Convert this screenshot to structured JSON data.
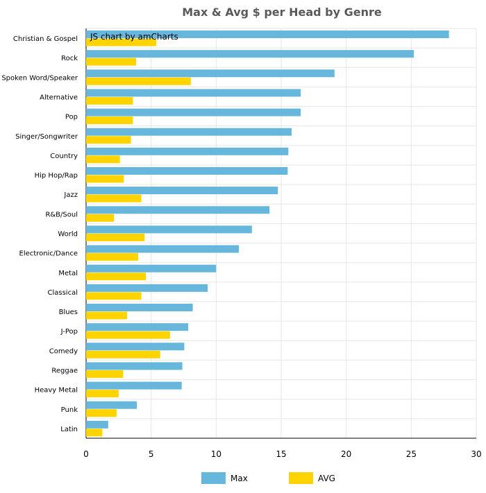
{
  "watermark": "JS chart by amCharts",
  "colors": {
    "max": "#67b7dc",
    "avg": "#fdd400",
    "grid": "#e6e6e6",
    "axis": "#cccccc",
    "text": "#000000",
    "title": "#5a5a5a"
  },
  "chart_data": {
    "type": "bar",
    "orientation": "horizontal",
    "title": "Max & Avg $ per Head by Genre",
    "xlabel": "",
    "ylabel": "",
    "xlim": [
      0,
      30
    ],
    "xticks": [
      0,
      5,
      10,
      15,
      20,
      25,
      30
    ],
    "grid": true,
    "legend_position": "bottom",
    "categories": [
      "Christian & Gospel",
      "Rock",
      "Spoken Word/Speaker",
      "Alternative",
      "Pop",
      "Singer/Songwriter",
      "Country",
      "Hip Hop/Rap",
      "Jazz",
      "R&B/Soul",
      "World",
      "Electronic/Dance",
      "Metal",
      "Classical",
      "Blues",
      "J-Pop",
      "Comedy",
      "Reggae",
      "Heavy Metal",
      "Punk",
      "Latin"
    ],
    "series": [
      {
        "name": "Max",
        "color": "#67b7dc",
        "values": [
          27.9,
          25.2,
          19.1,
          16.5,
          16.5,
          15.8,
          15.55,
          15.5,
          14.75,
          14.1,
          12.75,
          11.75,
          10.0,
          9.35,
          8.2,
          7.85,
          7.55,
          7.4,
          7.35,
          3.9,
          1.7
        ]
      },
      {
        "name": "AVG",
        "color": "#fdd400",
        "values": [
          5.4,
          3.85,
          8.05,
          3.6,
          3.6,
          3.45,
          2.6,
          2.9,
          4.25,
          2.15,
          4.5,
          4.0,
          4.6,
          4.25,
          3.15,
          6.45,
          5.7,
          2.85,
          2.5,
          2.35,
          1.25
        ]
      }
    ]
  }
}
